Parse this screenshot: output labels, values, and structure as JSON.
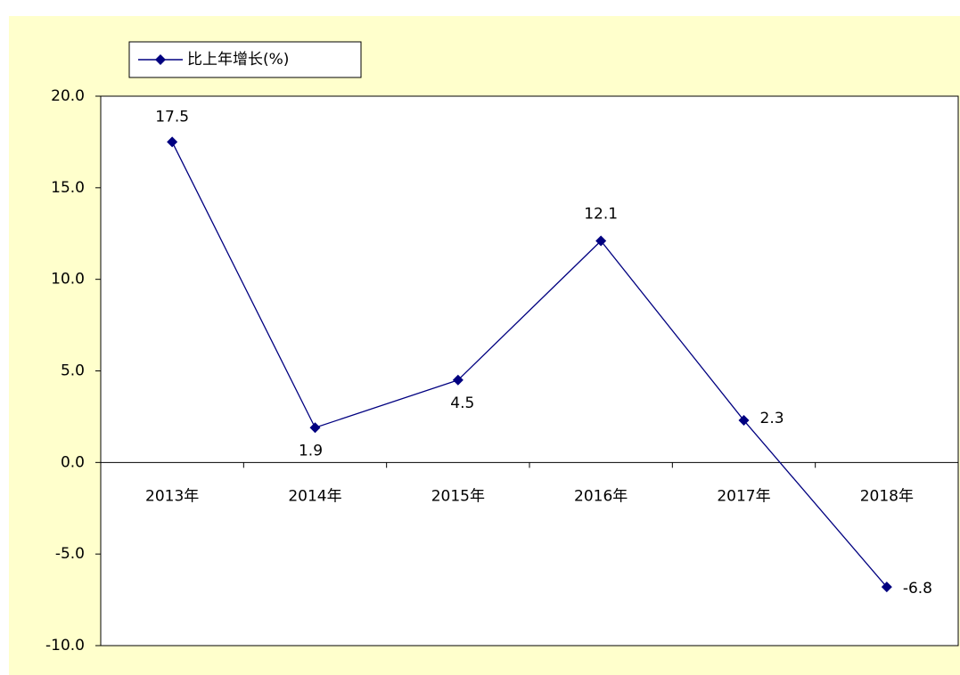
{
  "chart_data": {
    "type": "line",
    "categories": [
      "2013年",
      "2014年",
      "2015年",
      "2016年",
      "2017年",
      "2018年"
    ],
    "series": [
      {
        "name": "比上年增长(%)",
        "color": "#000080",
        "values": [
          17.5,
          1.9,
          4.5,
          12.1,
          2.3,
          -6.8
        ]
      }
    ],
    "ylim": [
      -10,
      20
    ],
    "yticks": [
      {
        "value": -10,
        "label": "-10.0"
      },
      {
        "value": -5,
        "label": "-5.0"
      },
      {
        "value": 0,
        "label": "0.0"
      },
      {
        "value": 5,
        "label": "5.0"
      },
      {
        "value": 10,
        "label": "10.0"
      },
      {
        "value": 15,
        "label": "15.0"
      },
      {
        "value": 20,
        "label": "20.0"
      }
    ],
    "legend": "top-left",
    "grid": false
  }
}
